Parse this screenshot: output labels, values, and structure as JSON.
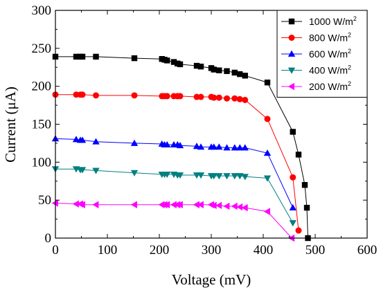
{
  "chart_data": {
    "type": "line",
    "xlabel": "Voltage (mV)",
    "ylabel": "Current (μA)",
    "xlim": [
      0,
      600
    ],
    "ylim": [
      0,
      300
    ],
    "xticks": [
      "0",
      "100",
      "200",
      "300",
      "400",
      "500",
      "600"
    ],
    "yticks": [
      "0",
      "50",
      "100",
      "150",
      "200",
      "250",
      "300"
    ],
    "grid": false,
    "legend_position": "top-right",
    "series": [
      {
        "name": "1000 W/m",
        "name_sup": "2",
        "color": "#000000",
        "marker": "square",
        "x": [
          0,
          40,
          48,
          52,
          78,
          152,
          205,
          210,
          215,
          228,
          235,
          240,
          272,
          280,
          300,
          305,
          315,
          330,
          345,
          355,
          365,
          408,
          457,
          468,
          480,
          484,
          486
        ],
        "y": [
          239,
          239,
          239,
          239,
          239,
          237,
          236,
          235,
          234,
          232,
          230,
          229,
          227,
          226,
          224,
          222,
          221,
          220,
          218,
          216,
          214,
          205,
          140,
          110,
          70,
          40,
          0
        ]
      },
      {
        "name": "800 W/m",
        "name_sup": "2",
        "color": "#ff0000",
        "marker": "circle",
        "x": [
          0,
          40,
          48,
          52,
          78,
          152,
          205,
          210,
          215,
          228,
          235,
          240,
          272,
          280,
          300,
          305,
          315,
          330,
          345,
          355,
          365,
          408,
          457,
          468
        ],
        "y": [
          189,
          189,
          189,
          189,
          188,
          188,
          187,
          187,
          187,
          187,
          187,
          187,
          186,
          186,
          186,
          185,
          185,
          184,
          184,
          183,
          182,
          157,
          80,
          10
        ]
      },
      {
        "name": "600 W/m",
        "name_sup": "2",
        "color": "#0000ff",
        "marker": "triangle-up",
        "x": [
          0,
          40,
          48,
          52,
          78,
          152,
          205,
          210,
          215,
          228,
          235,
          240,
          272,
          280,
          300,
          305,
          315,
          330,
          345,
          355,
          365,
          408,
          457
        ],
        "y": [
          131,
          130,
          129,
          129,
          127,
          125,
          124,
          123,
          123,
          123,
          123,
          122,
          121,
          120,
          120,
          120,
          120,
          119,
          119,
          119,
          119,
          112,
          40
        ]
      },
      {
        "name": "400 W/m",
        "name_sup": "2",
        "color": "#008080",
        "marker": "triangle-down",
        "x": [
          0,
          40,
          48,
          52,
          78,
          152,
          205,
          210,
          215,
          228,
          235,
          240,
          272,
          280,
          300,
          305,
          315,
          330,
          345,
          355,
          365,
          408,
          457
        ],
        "y": [
          91,
          91,
          90,
          90,
          89,
          86,
          84,
          84,
          84,
          84,
          83,
          83,
          83,
          83,
          82,
          82,
          82,
          82,
          82,
          82,
          81,
          79,
          20
        ]
      },
      {
        "name": "200 W/m",
        "name_sup": "2",
        "color": "#ff00ff",
        "marker": "triangle-left",
        "x": [
          0,
          40,
          48,
          52,
          78,
          152,
          205,
          210,
          215,
          228,
          235,
          240,
          272,
          280,
          300,
          305,
          315,
          330,
          345,
          355,
          365,
          408,
          455
        ],
        "y": [
          46,
          45,
          45,
          44,
          44,
          44,
          44,
          44,
          44,
          44,
          44,
          44,
          44,
          44,
          44,
          43,
          43,
          42,
          42,
          41,
          40,
          35,
          0
        ]
      }
    ]
  }
}
